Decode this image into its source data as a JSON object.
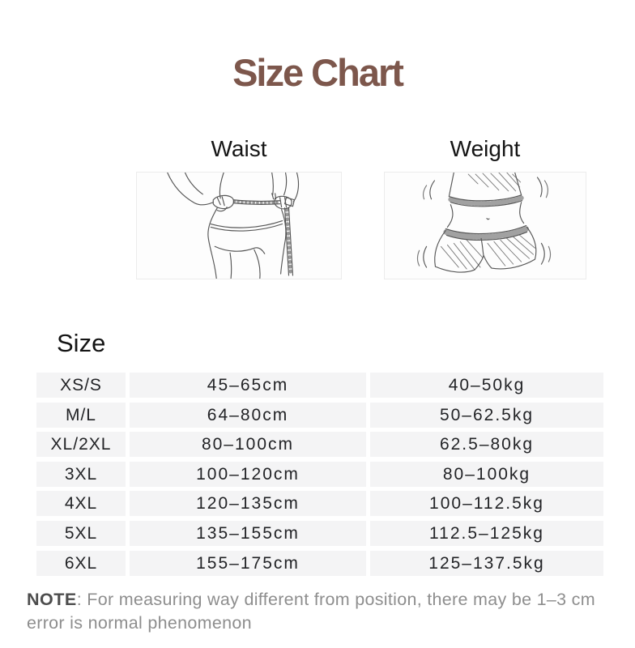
{
  "page": {
    "title": "Size Chart"
  },
  "colors": {
    "title_brown": "#7d574c",
    "row_background": "#f4f4f5",
    "note_gray": "#8e8e8e",
    "table_text": "#222326"
  },
  "figures": [
    {
      "label": "Waist",
      "icon": "waist-measuring-tape-illustration"
    },
    {
      "label": "Weight",
      "icon": "weight-body-shorts-illustration"
    }
  ],
  "table": {
    "size_header": "Size",
    "rows": [
      {
        "size": "XS/S",
        "waist": "45–65cm",
        "weight": "40–50kg"
      },
      {
        "size": "M/L",
        "waist": "64–80cm",
        "weight": "50–62.5kg"
      },
      {
        "size": "XL/2XL",
        "waist": "80–100cm",
        "weight": "62.5–80kg"
      },
      {
        "size": "3XL",
        "waist": "100–120cm",
        "weight": "80–100kg"
      },
      {
        "size": "4XL",
        "waist": "120–135cm",
        "weight": "100–112.5kg"
      },
      {
        "size": "5XL",
        "waist": "135–155cm",
        "weight": "112.5–125kg"
      },
      {
        "size": "6XL",
        "waist": "155–175cm",
        "weight": "125–137.5kg"
      }
    ]
  },
  "note": {
    "label": "NOTE",
    "text": ": For measuring way different from position, there may be 1–3 cm error is normal phenomenon"
  }
}
